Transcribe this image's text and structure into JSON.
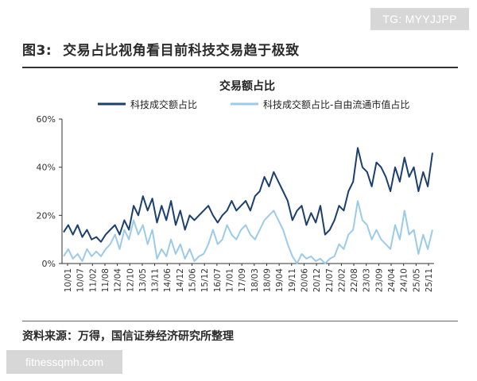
{
  "watermarks": {
    "top": "TG: MYYJJPP",
    "bottom": "fitnessqmh.com"
  },
  "figure": {
    "number": "图3:",
    "title": "交易占比视角看目前科技交易趋于极致",
    "source": "资料来源：万得，国信证券经济研究所整理"
  },
  "colors": {
    "series1": "#1b3f6e",
    "series2": "#9bcbe8",
    "axis": "#333333"
  },
  "chart_data": {
    "type": "line",
    "title": "交易额占比",
    "xlabel": "",
    "ylabel": "",
    "ylim": [
      0,
      60
    ],
    "yticks": [
      "0%",
      "20%",
      "40%",
      "60%"
    ],
    "grid": false,
    "legend": "top",
    "xticks": [
      "10/01",
      "10/07",
      "11/02",
      "11/08",
      "12/04",
      "12/10",
      "13/05",
      "13/11",
      "14/06",
      "14/12",
      "15/06",
      "15/12",
      "16/07",
      "17/01",
      "17/09",
      "18/03",
      "18/09",
      "19/04",
      "19/11",
      "20/06",
      "20/12",
      "21/07",
      "22/02",
      "22/08",
      "23/03",
      "23/09",
      "24/04",
      "24/10",
      "25/05",
      "25/11"
    ],
    "series": [
      {
        "name": "科技成交额占比",
        "values": [
          13,
          16,
          12,
          16,
          11,
          14,
          10,
          11,
          9,
          12,
          14,
          16,
          12,
          18,
          14,
          24,
          20,
          28,
          22,
          27,
          17,
          24,
          18,
          26,
          16,
          22,
          14,
          20,
          18,
          20,
          22,
          24,
          20,
          17,
          20,
          22,
          26,
          22,
          24,
          26,
          22,
          28,
          30,
          36,
          32,
          38,
          34,
          30,
          26,
          18,
          22,
          24,
          16,
          21,
          17,
          24,
          12,
          14,
          18,
          24,
          22,
          30,
          34,
          48,
          40,
          38,
          32,
          42,
          40,
          36,
          30,
          40,
          34,
          44,
          36,
          40,
          30,
          38,
          32,
          46
        ]
      },
      {
        "name": "科技成交额占比-自由流通市值占比",
        "values": [
          3,
          6,
          2,
          4,
          1,
          6,
          3,
          5,
          3,
          6,
          8,
          12,
          6,
          14,
          10,
          18,
          12,
          16,
          8,
          14,
          2,
          6,
          3,
          10,
          4,
          8,
          2,
          6,
          1,
          3,
          4,
          8,
          14,
          8,
          10,
          16,
          12,
          10,
          14,
          16,
          12,
          10,
          14,
          18,
          20,
          22,
          18,
          14,
          8,
          3,
          0,
          4,
          2,
          3,
          1,
          2,
          0,
          2,
          3,
          8,
          6,
          12,
          14,
          26,
          18,
          16,
          10,
          14,
          10,
          8,
          6,
          16,
          10,
          22,
          12,
          14,
          4,
          12,
          6,
          14
        ]
      }
    ]
  }
}
